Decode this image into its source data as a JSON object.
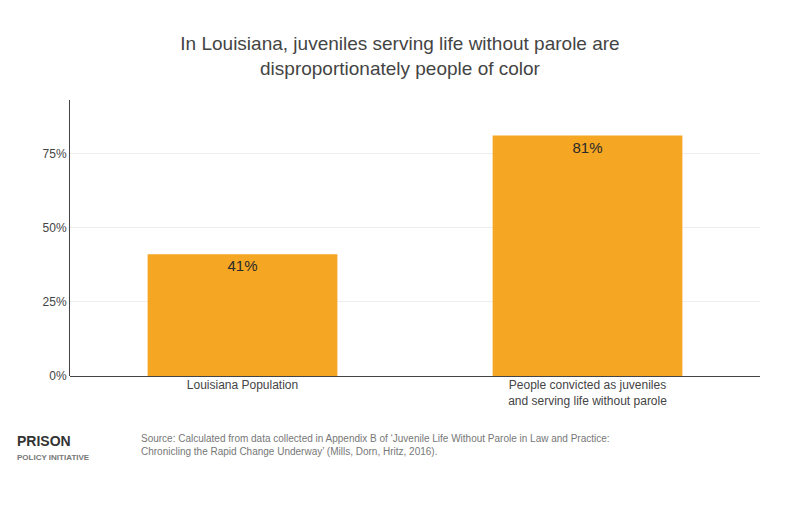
{
  "chart_data": {
    "type": "bar",
    "title": "In Louisiana, juveniles serving life without parole are\ndisproportionately people of color",
    "categories": [
      "Louisiana Population",
      "People convicted as juveniles\nand serving life without parole"
    ],
    "values": [
      41,
      81
    ],
    "value_labels": [
      "41%",
      "81%"
    ],
    "data_labels": true,
    "color": "#F5A623",
    "ylim": [
      0,
      93
    ],
    "yticks": [
      {
        "value": 0,
        "label": "0%"
      },
      {
        "value": 25,
        "label": "25%"
      },
      {
        "value": 50,
        "label": "50%"
      },
      {
        "value": 75,
        "label": "75%"
      }
    ],
    "grid": true,
    "annotations": [
      "Source: Calculated from data collected in Appendix B of ‘Juvenile Life Without Parole in Law and Practice:\nChronicling the Rapid Change Underway’ (Mills, Dorn, Hritz, 2016).",
      "PRISON",
      "POLICY INITIATIVE"
    ]
  }
}
